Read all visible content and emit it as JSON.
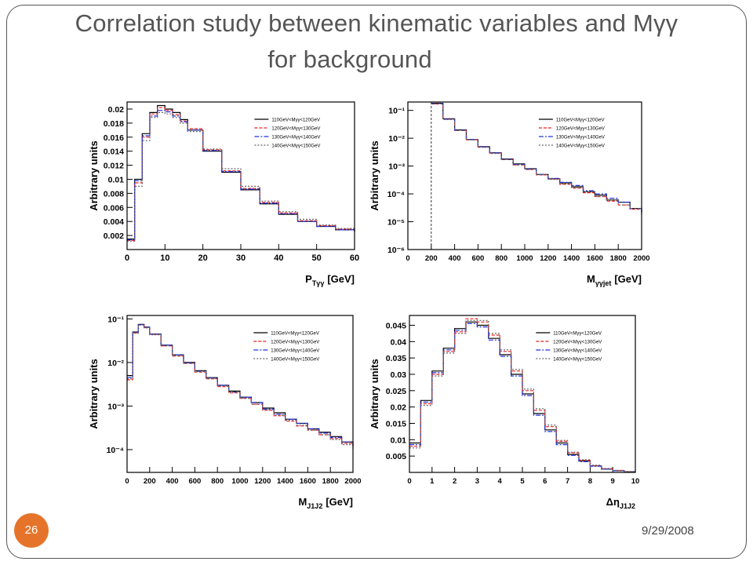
{
  "title": {
    "line1": "Correlation study between kinematic variables and Mγγ",
    "line2": "for background"
  },
  "slide_number": "26",
  "date": "9/29/2008",
  "colors": {
    "accent": "#e5742a",
    "series": [
      "#000000",
      "#ee2222",
      "#2233dd",
      "#666666"
    ]
  },
  "chart_data": [
    {
      "type": "line",
      "ylabel": "Arbitrary units",
      "xlabel_main": "P",
      "xlabel_sub": "Tγγ",
      "xlabel_unit": "[GeV]",
      "xlim": [
        0,
        60
      ],
      "ylim": [
        0,
        0.021
      ],
      "yscale": "linear",
      "xticks": [
        0,
        10,
        20,
        30,
        40,
        50,
        60
      ],
      "yticks": [
        0.002,
        0.004,
        0.006,
        0.008,
        0.01,
        0.012,
        0.014,
        0.016,
        0.018,
        0.02
      ],
      "ytick_labels": [
        "0.002",
        "0.004",
        "0.006",
        "0.008",
        "0.01",
        "0.012",
        "0.014",
        "0.016",
        "0.018",
        "0.02"
      ],
      "legend": [
        "110GeV<Mγγ<120GeV",
        "120GeV<Mγγ<130GeV",
        "130GeV<Mγγ<140GeV",
        "140GeV<Mγγ<150GeV"
      ],
      "x": [
        0,
        2,
        4,
        6,
        8,
        10,
        12,
        14,
        16,
        20,
        25,
        30,
        35,
        40,
        45,
        50,
        55,
        60
      ],
      "series": [
        {
          "values": [
            0.0015,
            0.01,
            0.0165,
            0.0195,
            0.0205,
            0.02,
            0.0195,
            0.0185,
            0.017,
            0.014,
            0.011,
            0.0085,
            0.0065,
            0.005,
            0.004,
            0.0033,
            0.0028,
            0.0025
          ]
        },
        {
          "values": [
            0.0013,
            0.0095,
            0.016,
            0.0193,
            0.0202,
            0.0198,
            0.0192,
            0.0183,
            0.0172,
            0.0142,
            0.0112,
            0.0087,
            0.0067,
            0.0052,
            0.0041,
            0.0034,
            0.0029,
            0.0026
          ]
        },
        {
          "values": [
            0.0014,
            0.0098,
            0.0162,
            0.019,
            0.0198,
            0.0196,
            0.019,
            0.0182,
            0.017,
            0.0141,
            0.0111,
            0.0086,
            0.0066,
            0.0051,
            0.004,
            0.0033,
            0.0028,
            0.0025
          ]
        },
        {
          "values": [
            0.0012,
            0.009,
            0.0155,
            0.0188,
            0.0195,
            0.0193,
            0.0188,
            0.018,
            0.0168,
            0.0143,
            0.0115,
            0.009,
            0.0069,
            0.0054,
            0.0043,
            0.0035,
            0.003,
            0.0027
          ]
        }
      ]
    },
    {
      "type": "line",
      "ylabel": "Arbitrary units",
      "xlabel_main": "M",
      "xlabel_sub": "γγjet",
      "xlabel_unit": "[GeV]",
      "xlim": [
        0,
        2000
      ],
      "ylim": [
        1e-06,
        0.2
      ],
      "yscale": "log",
      "xticks": [
        0,
        200,
        400,
        600,
        800,
        1000,
        1200,
        1400,
        1600,
        1800,
        2000
      ],
      "yticks": [
        1e-06,
        1e-05,
        0.0001,
        0.001,
        0.01,
        0.1
      ],
      "ytick_labels": [
        "10⁻⁶",
        "10⁻⁵",
        "10⁻⁴",
        "10⁻³",
        "10⁻²",
        "10⁻¹"
      ],
      "legend": [
        "110GeV<Mγγ<120GeV",
        "120GeV<Mγγ<130GeV",
        "130GeV<Mγγ<140GeV",
        "140GeV<Mγγ<150GeV"
      ],
      "x": [
        200,
        300,
        400,
        500,
        600,
        700,
        800,
        900,
        1000,
        1100,
        1200,
        1300,
        1400,
        1500,
        1600,
        1700,
        1800,
        1900,
        2000
      ],
      "series": [
        {
          "values": [
            0.18,
            0.05,
            0.02,
            0.009,
            0.005,
            0.003,
            0.0018,
            0.0012,
            0.0008,
            0.0005,
            0.00035,
            0.00025,
            0.00018,
            0.00012,
            9e-05,
            6e-05,
            5e-05,
            3e-05,
            2e-05
          ]
        },
        {
          "values": [
            0.17,
            0.048,
            0.019,
            0.0088,
            0.0048,
            0.0029,
            0.0017,
            0.0011,
            0.00075,
            0.00048,
            0.00034,
            0.00022,
            0.00016,
            0.00011,
            8e-05,
            5.5e-05,
            4e-05,
            2.8e-05,
            1.8e-05
          ]
        },
        {
          "values": [
            0.175,
            0.049,
            0.0195,
            0.0089,
            0.0049,
            0.003,
            0.00175,
            0.00115,
            0.00078,
            0.0005,
            0.00036,
            0.00026,
            0.0002,
            0.00013,
            0.0001,
            7e-05,
            5e-05,
            3e-05,
            2e-05
          ]
        },
        {
          "values": [
            0.172,
            0.047,
            0.019,
            0.0087,
            0.0047,
            0.0028,
            0.0017,
            0.0011,
            0.00076,
            0.00049,
            0.00033,
            0.00023,
            0.00017,
            0.00012,
            8e-05,
            6e-05,
            4e-05,
            3e-05,
            2e-05
          ]
        }
      ]
    },
    {
      "type": "line",
      "ylabel": "Arbitrary units",
      "xlabel_main": "M",
      "xlabel_sub": "J1J2",
      "xlabel_unit": "[GeV]",
      "xlim": [
        0,
        2000
      ],
      "ylim": [
        3e-05,
        0.12
      ],
      "yscale": "log",
      "xticks": [
        0,
        200,
        400,
        600,
        800,
        1000,
        1200,
        1400,
        1600,
        1800,
        2000
      ],
      "yticks": [
        0.0001,
        0.001,
        0.01,
        0.1
      ],
      "ytick_labels": [
        "10⁻⁴",
        "10⁻³",
        "10⁻²",
        "10⁻¹"
      ],
      "legend": [
        "110GeV<Mγγ<120GeV",
        "120GeV<Mγγ<130GeV",
        "130GeV<Mγγ<140GeV",
        "140GeV<Mγγ<150GeV"
      ],
      "x": [
        0,
        50,
        100,
        150,
        200,
        300,
        400,
        500,
        600,
        700,
        800,
        900,
        1000,
        1100,
        1200,
        1300,
        1400,
        1500,
        1600,
        1700,
        1800,
        1900,
        2000
      ],
      "series": [
        {
          "values": [
            0.005,
            0.05,
            0.075,
            0.065,
            0.045,
            0.025,
            0.015,
            0.01,
            0.0065,
            0.0045,
            0.003,
            0.0022,
            0.0016,
            0.0012,
            0.0009,
            0.0007,
            0.0005,
            0.0004,
            0.0003,
            0.00025,
            0.0002,
            0.00015,
            0.00012
          ]
        },
        {
          "values": [
            0.004,
            0.048,
            0.073,
            0.063,
            0.044,
            0.024,
            0.014,
            0.0095,
            0.006,
            0.0042,
            0.0028,
            0.002,
            0.0015,
            0.0011,
            0.0008,
            0.0006,
            0.00045,
            0.00035,
            0.00028,
            0.00022,
            0.00018,
            0.00014,
            0.0001
          ]
        },
        {
          "values": [
            0.0045,
            0.049,
            0.074,
            0.064,
            0.045,
            0.025,
            0.015,
            0.0098,
            0.0063,
            0.0044,
            0.003,
            0.0021,
            0.0016,
            0.0012,
            0.00085,
            0.00065,
            0.0005,
            0.0004,
            0.0003,
            0.00024,
            0.00019,
            0.00015,
            0.00011
          ]
        },
        {
          "values": [
            0.0042,
            0.047,
            0.072,
            0.062,
            0.043,
            0.024,
            0.0145,
            0.0096,
            0.0062,
            0.0043,
            0.0029,
            0.0021,
            0.0015,
            0.0011,
            0.00082,
            0.00062,
            0.00047,
            0.00036,
            0.00028,
            0.00022,
            0.00017,
            0.00013,
            0.0001
          ]
        }
      ]
    },
    {
      "type": "line",
      "ylabel": "Arbitrary units",
      "xlabel_main": "Δη",
      "xlabel_sub": "J1J2",
      "xlabel_unit": "",
      "xlim": [
        0,
        10
      ],
      "ylim": [
        0,
        0.048
      ],
      "yscale": "linear",
      "xticks": [
        0,
        1,
        2,
        3,
        4,
        5,
        6,
        7,
        8,
        9,
        10
      ],
      "yticks": [
        0.005,
        0.01,
        0.015,
        0.02,
        0.025,
        0.03,
        0.035,
        0.04,
        0.045
      ],
      "ytick_labels": [
        "0.005",
        "0.01",
        "0.015",
        "0.02",
        "0.025",
        "0.03",
        "0.035",
        "0.04",
        "0.045"
      ],
      "legend": [
        "110GeV<Mγγ<120GeV",
        "120GeV<Mγγ<130GeV",
        "130GeV<Mγγ<140GeV",
        "140GeV<Mγγ<150GeV"
      ],
      "x": [
        0,
        0.5,
        1,
        1.5,
        2,
        2.5,
        3,
        3.5,
        4,
        4.5,
        5,
        5.5,
        6,
        6.5,
        7,
        7.5,
        8,
        8.5,
        9,
        9.5,
        10
      ],
      "series": [
        {
          "values": [
            0.009,
            0.022,
            0.031,
            0.038,
            0.044,
            0.046,
            0.045,
            0.041,
            0.036,
            0.03,
            0.024,
            0.018,
            0.013,
            0.009,
            0.0055,
            0.0035,
            0.002,
            0.001,
            0.0005,
            0.0002,
            0.0001
          ]
        },
        {
          "values": [
            0.008,
            0.021,
            0.03,
            0.037,
            0.043,
            0.047,
            0.046,
            0.042,
            0.037,
            0.031,
            0.025,
            0.019,
            0.014,
            0.0095,
            0.006,
            0.0037,
            0.0021,
            0.0011,
            0.0006,
            0.0002,
            0.0001
          ]
        },
        {
          "values": [
            0.0085,
            0.0215,
            0.0305,
            0.0375,
            0.0435,
            0.0455,
            0.0445,
            0.0405,
            0.0355,
            0.0295,
            0.0235,
            0.0175,
            0.0125,
            0.0085,
            0.0052,
            0.0033,
            0.0019,
            0.001,
            0.0005,
            0.0002,
            0.0001
          ]
        },
        {
          "values": [
            0.0075,
            0.0205,
            0.0295,
            0.0365,
            0.0425,
            0.0465,
            0.0465,
            0.0425,
            0.0375,
            0.0315,
            0.0255,
            0.0195,
            0.0145,
            0.0098,
            0.0062,
            0.0039,
            0.0022,
            0.0012,
            0.0006,
            0.0003,
            0.0001
          ]
        }
      ]
    }
  ]
}
